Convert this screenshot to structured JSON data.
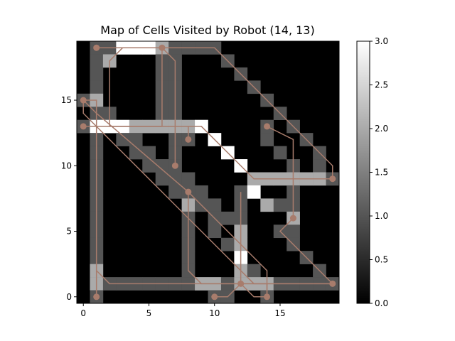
{
  "chart_data": {
    "type": "heatmap",
    "title": "Map of Cells Visited by Robot (14, 13)",
    "xlabel": "",
    "ylabel": "",
    "grid_size": [
      20,
      20
    ],
    "xlim": [
      -0.5,
      19.5
    ],
    "ylim": [
      -0.5,
      19.5
    ],
    "x_ticks": [
      0,
      5,
      10,
      15
    ],
    "y_ticks": [
      0,
      5,
      10,
      15
    ],
    "colormap": "gray",
    "colorbar": {
      "range": [
        0,
        3
      ],
      "ticks": [
        "0.0",
        "0.5",
        "1.0",
        "1.5",
        "2.0",
        "2.5",
        "3.0"
      ]
    },
    "path_color": "#a87c6c",
    "cells": [
      {
        "y": 19,
        "x": 1,
        "v": 1
      },
      {
        "y": 19,
        "x": 2,
        "v": 1
      },
      {
        "y": 19,
        "x": 3,
        "v": 3
      },
      {
        "y": 19,
        "x": 4,
        "v": 3
      },
      {
        "y": 19,
        "x": 5,
        "v": 3
      },
      {
        "y": 19,
        "x": 6,
        "v": 2
      },
      {
        "y": 19,
        "x": 7,
        "v": 1
      },
      {
        "y": 19,
        "x": 8,
        "v": 1
      },
      {
        "y": 19,
        "x": 9,
        "v": 1
      },
      {
        "y": 19,
        "x": 10,
        "v": 1
      },
      {
        "y": 18,
        "x": 1,
        "v": 1
      },
      {
        "y": 18,
        "x": 2,
        "v": 2
      },
      {
        "y": 18,
        "x": 6,
        "v": 1
      },
      {
        "y": 18,
        "x": 7,
        "v": 1
      },
      {
        "y": 18,
        "x": 11,
        "v": 1
      },
      {
        "y": 17,
        "x": 1,
        "v": 1
      },
      {
        "y": 17,
        "x": 6,
        "v": 1
      },
      {
        "y": 17,
        "x": 7,
        "v": 1
      },
      {
        "y": 17,
        "x": 12,
        "v": 1
      },
      {
        "y": 16,
        "x": 1,
        "v": 1
      },
      {
        "y": 16,
        "x": 6,
        "v": 1
      },
      {
        "y": 16,
        "x": 7,
        "v": 1
      },
      {
        "y": 16,
        "x": 13,
        "v": 1
      },
      {
        "y": 15,
        "x": 0,
        "v": 1
      },
      {
        "y": 15,
        "x": 1,
        "v": 2
      },
      {
        "y": 15,
        "x": 6,
        "v": 1
      },
      {
        "y": 15,
        "x": 7,
        "v": 1
      },
      {
        "y": 15,
        "x": 14,
        "v": 1
      },
      {
        "y": 14,
        "x": 1,
        "v": 1
      },
      {
        "y": 14,
        "x": 2,
        "v": 1
      },
      {
        "y": 14,
        "x": 6,
        "v": 1
      },
      {
        "y": 14,
        "x": 7,
        "v": 1
      },
      {
        "y": 14,
        "x": 15,
        "v": 1
      },
      {
        "y": 13,
        "x": 0,
        "v": 1
      },
      {
        "y": 13,
        "x": 1,
        "v": 3
      },
      {
        "y": 13,
        "x": 2,
        "v": 3
      },
      {
        "y": 13,
        "x": 3,
        "v": 3
      },
      {
        "y": 13,
        "x": 4,
        "v": 2
      },
      {
        "y": 13,
        "x": 5,
        "v": 2
      },
      {
        "y": 13,
        "x": 6,
        "v": 2
      },
      {
        "y": 13,
        "x": 7,
        "v": 2
      },
      {
        "y": 13,
        "x": 8,
        "v": 2
      },
      {
        "y": 13,
        "x": 9,
        "v": 3
      },
      {
        "y": 13,
        "x": 14,
        "v": 1
      },
      {
        "y": 13,
        "x": 16,
        "v": 1
      },
      {
        "y": 12,
        "x": 1,
        "v": 1
      },
      {
        "y": 12,
        "x": 3,
        "v": 1
      },
      {
        "y": 12,
        "x": 4,
        "v": 1
      },
      {
        "y": 12,
        "x": 7,
        "v": 1
      },
      {
        "y": 12,
        "x": 8,
        "v": 1
      },
      {
        "y": 12,
        "x": 10,
        "v": 3
      },
      {
        "y": 12,
        "x": 14,
        "v": 1
      },
      {
        "y": 12,
        "x": 17,
        "v": 1
      },
      {
        "y": 11,
        "x": 1,
        "v": 1
      },
      {
        "y": 11,
        "x": 4,
        "v": 1
      },
      {
        "y": 11,
        "x": 5,
        "v": 1
      },
      {
        "y": 11,
        "x": 7,
        "v": 1
      },
      {
        "y": 11,
        "x": 11,
        "v": 3
      },
      {
        "y": 11,
        "x": 15,
        "v": 1
      },
      {
        "y": 11,
        "x": 18,
        "v": 1
      },
      {
        "y": 10,
        "x": 1,
        "v": 1
      },
      {
        "y": 10,
        "x": 5,
        "v": 1
      },
      {
        "y": 10,
        "x": 6,
        "v": 1
      },
      {
        "y": 10,
        "x": 7,
        "v": 1
      },
      {
        "y": 10,
        "x": 12,
        "v": 3
      },
      {
        "y": 10,
        "x": 16,
        "v": 1
      },
      {
        "y": 10,
        "x": 18,
        "v": 1
      },
      {
        "y": 9,
        "x": 1,
        "v": 1
      },
      {
        "y": 9,
        "x": 6,
        "v": 1
      },
      {
        "y": 9,
        "x": 7,
        "v": 1
      },
      {
        "y": 9,
        "x": 8,
        "v": 1
      },
      {
        "y": 9,
        "x": 13,
        "v": 2
      },
      {
        "y": 9,
        "x": 14,
        "v": 2
      },
      {
        "y": 9,
        "x": 15,
        "v": 2
      },
      {
        "y": 9,
        "x": 16,
        "v": 2
      },
      {
        "y": 9,
        "x": 17,
        "v": 2
      },
      {
        "y": 9,
        "x": 18,
        "v": 2
      },
      {
        "y": 9,
        "x": 19,
        "v": 1
      },
      {
        "y": 8,
        "x": 1,
        "v": 1
      },
      {
        "y": 8,
        "x": 7,
        "v": 1
      },
      {
        "y": 8,
        "x": 8,
        "v": 1
      },
      {
        "y": 8,
        "x": 9,
        "v": 1
      },
      {
        "y": 8,
        "x": 12,
        "v": 1
      },
      {
        "y": 8,
        "x": 13,
        "v": 3
      },
      {
        "y": 8,
        "x": 16,
        "v": 1
      },
      {
        "y": 7,
        "x": 1,
        "v": 1
      },
      {
        "y": 7,
        "x": 8,
        "v": 2
      },
      {
        "y": 7,
        "x": 9,
        "v": 1
      },
      {
        "y": 7,
        "x": 10,
        "v": 1
      },
      {
        "y": 7,
        "x": 12,
        "v": 1
      },
      {
        "y": 7,
        "x": 14,
        "v": 2
      },
      {
        "y": 7,
        "x": 15,
        "v": 1
      },
      {
        "y": 7,
        "x": 16,
        "v": 1
      },
      {
        "y": 6,
        "x": 1,
        "v": 1
      },
      {
        "y": 6,
        "x": 8,
        "v": 1
      },
      {
        "y": 6,
        "x": 10,
        "v": 1
      },
      {
        "y": 6,
        "x": 11,
        "v": 1
      },
      {
        "y": 6,
        "x": 12,
        "v": 1
      },
      {
        "y": 6,
        "x": 16,
        "v": 2
      },
      {
        "y": 5,
        "x": 1,
        "v": 1
      },
      {
        "y": 5,
        "x": 8,
        "v": 1
      },
      {
        "y": 5,
        "x": 10,
        "v": 1
      },
      {
        "y": 5,
        "x": 12,
        "v": 2
      },
      {
        "y": 5,
        "x": 15,
        "v": 1
      },
      {
        "y": 5,
        "x": 16,
        "v": 1
      },
      {
        "y": 4,
        "x": 1,
        "v": 1
      },
      {
        "y": 4,
        "x": 8,
        "v": 1
      },
      {
        "y": 4,
        "x": 11,
        "v": 1
      },
      {
        "y": 4,
        "x": 12,
        "v": 2
      },
      {
        "y": 4,
        "x": 16,
        "v": 1
      },
      {
        "y": 3,
        "x": 1,
        "v": 1
      },
      {
        "y": 3,
        "x": 8,
        "v": 1
      },
      {
        "y": 3,
        "x": 12,
        "v": 3
      },
      {
        "y": 3,
        "x": 17,
        "v": 1
      },
      {
        "y": 2,
        "x": 1,
        "v": 2
      },
      {
        "y": 2,
        "x": 8,
        "v": 1
      },
      {
        "y": 2,
        "x": 12,
        "v": 2
      },
      {
        "y": 2,
        "x": 13,
        "v": 1
      },
      {
        "y": 2,
        "x": 18,
        "v": 1
      },
      {
        "y": 1,
        "x": 1,
        "v": 2
      },
      {
        "y": 1,
        "x": 2,
        "v": 1
      },
      {
        "y": 1,
        "x": 3,
        "v": 1
      },
      {
        "y": 1,
        "x": 4,
        "v": 1
      },
      {
        "y": 1,
        "x": 5,
        "v": 1
      },
      {
        "y": 1,
        "x": 6,
        "v": 1
      },
      {
        "y": 1,
        "x": 7,
        "v": 1
      },
      {
        "y": 1,
        "x": 8,
        "v": 1
      },
      {
        "y": 1,
        "x": 9,
        "v": 2
      },
      {
        "y": 1,
        "x": 10,
        "v": 2
      },
      {
        "y": 1,
        "x": 11,
        "v": 1
      },
      {
        "y": 1,
        "x": 12,
        "v": 2
      },
      {
        "y": 1,
        "x": 13,
        "v": 2
      },
      {
        "y": 1,
        "x": 14,
        "v": 2
      },
      {
        "y": 1,
        "x": 15,
        "v": 1
      },
      {
        "y": 1,
        "x": 16,
        "v": 1
      },
      {
        "y": 1,
        "x": 17,
        "v": 1
      },
      {
        "y": 1,
        "x": 18,
        "v": 1
      },
      {
        "y": 1,
        "x": 19,
        "v": 1
      },
      {
        "y": 0,
        "x": 1,
        "v": 1
      },
      {
        "y": 0,
        "x": 10,
        "v": 1
      },
      {
        "y": 0,
        "x": 11,
        "v": 1
      },
      {
        "y": 0,
        "x": 14,
        "v": 1
      }
    ],
    "paths": [
      [
        [
          1,
          19
        ],
        [
          6,
          19
        ],
        [
          10,
          19
        ],
        [
          19,
          10
        ],
        [
          19,
          9
        ],
        [
          13,
          9
        ],
        [
          12,
          10
        ],
        [
          9,
          13
        ],
        [
          0,
          13
        ],
        [
          8,
          13
        ],
        [
          8,
          12
        ]
      ],
      [
        [
          6,
          19
        ],
        [
          6,
          13
        ],
        [
          2,
          13
        ],
        [
          2,
          18
        ],
        [
          3,
          19
        ],
        [
          6,
          19
        ],
        [
          7,
          18
        ],
        [
          7,
          10
        ]
      ],
      [
        [
          0,
          15
        ],
        [
          1,
          15
        ],
        [
          1,
          0
        ],
        [
          1,
          2
        ],
        [
          2,
          1
        ],
        [
          12,
          1
        ],
        [
          12,
          8
        ],
        [
          12,
          1
        ],
        [
          13,
          0
        ],
        [
          14,
          0
        ],
        [
          14,
          1
        ],
        [
          13,
          1
        ],
        [
          0,
          14
        ],
        [
          0,
          15
        ]
      ],
      [
        [
          0,
          15
        ],
        [
          1,
          14
        ],
        [
          8,
          8
        ],
        [
          8,
          2
        ],
        [
          9,
          1
        ],
        [
          19,
          1
        ],
        [
          15,
          5
        ],
        [
          16,
          6
        ],
        [
          16,
          12
        ],
        [
          14,
          13
        ]
      ],
      [
        [
          8,
          8
        ],
        [
          14,
          2
        ],
        [
          14,
          0
        ]
      ],
      [
        [
          10,
          0
        ],
        [
          11,
          0
        ],
        [
          12,
          1
        ],
        [
          17,
          1
        ],
        [
          19,
          1
        ]
      ]
    ],
    "points": [
      [
        1,
        19
      ],
      [
        6,
        19
      ],
      [
        0,
        15
      ],
      [
        0,
        13
      ],
      [
        8,
        12
      ],
      [
        7,
        10
      ],
      [
        8,
        8
      ],
      [
        14,
        13
      ],
      [
        19,
        9
      ],
      [
        16,
        6
      ],
      [
        12,
        1
      ],
      [
        19,
        1
      ],
      [
        10,
        0
      ],
      [
        14,
        0
      ],
      [
        1,
        0
      ]
    ]
  }
}
